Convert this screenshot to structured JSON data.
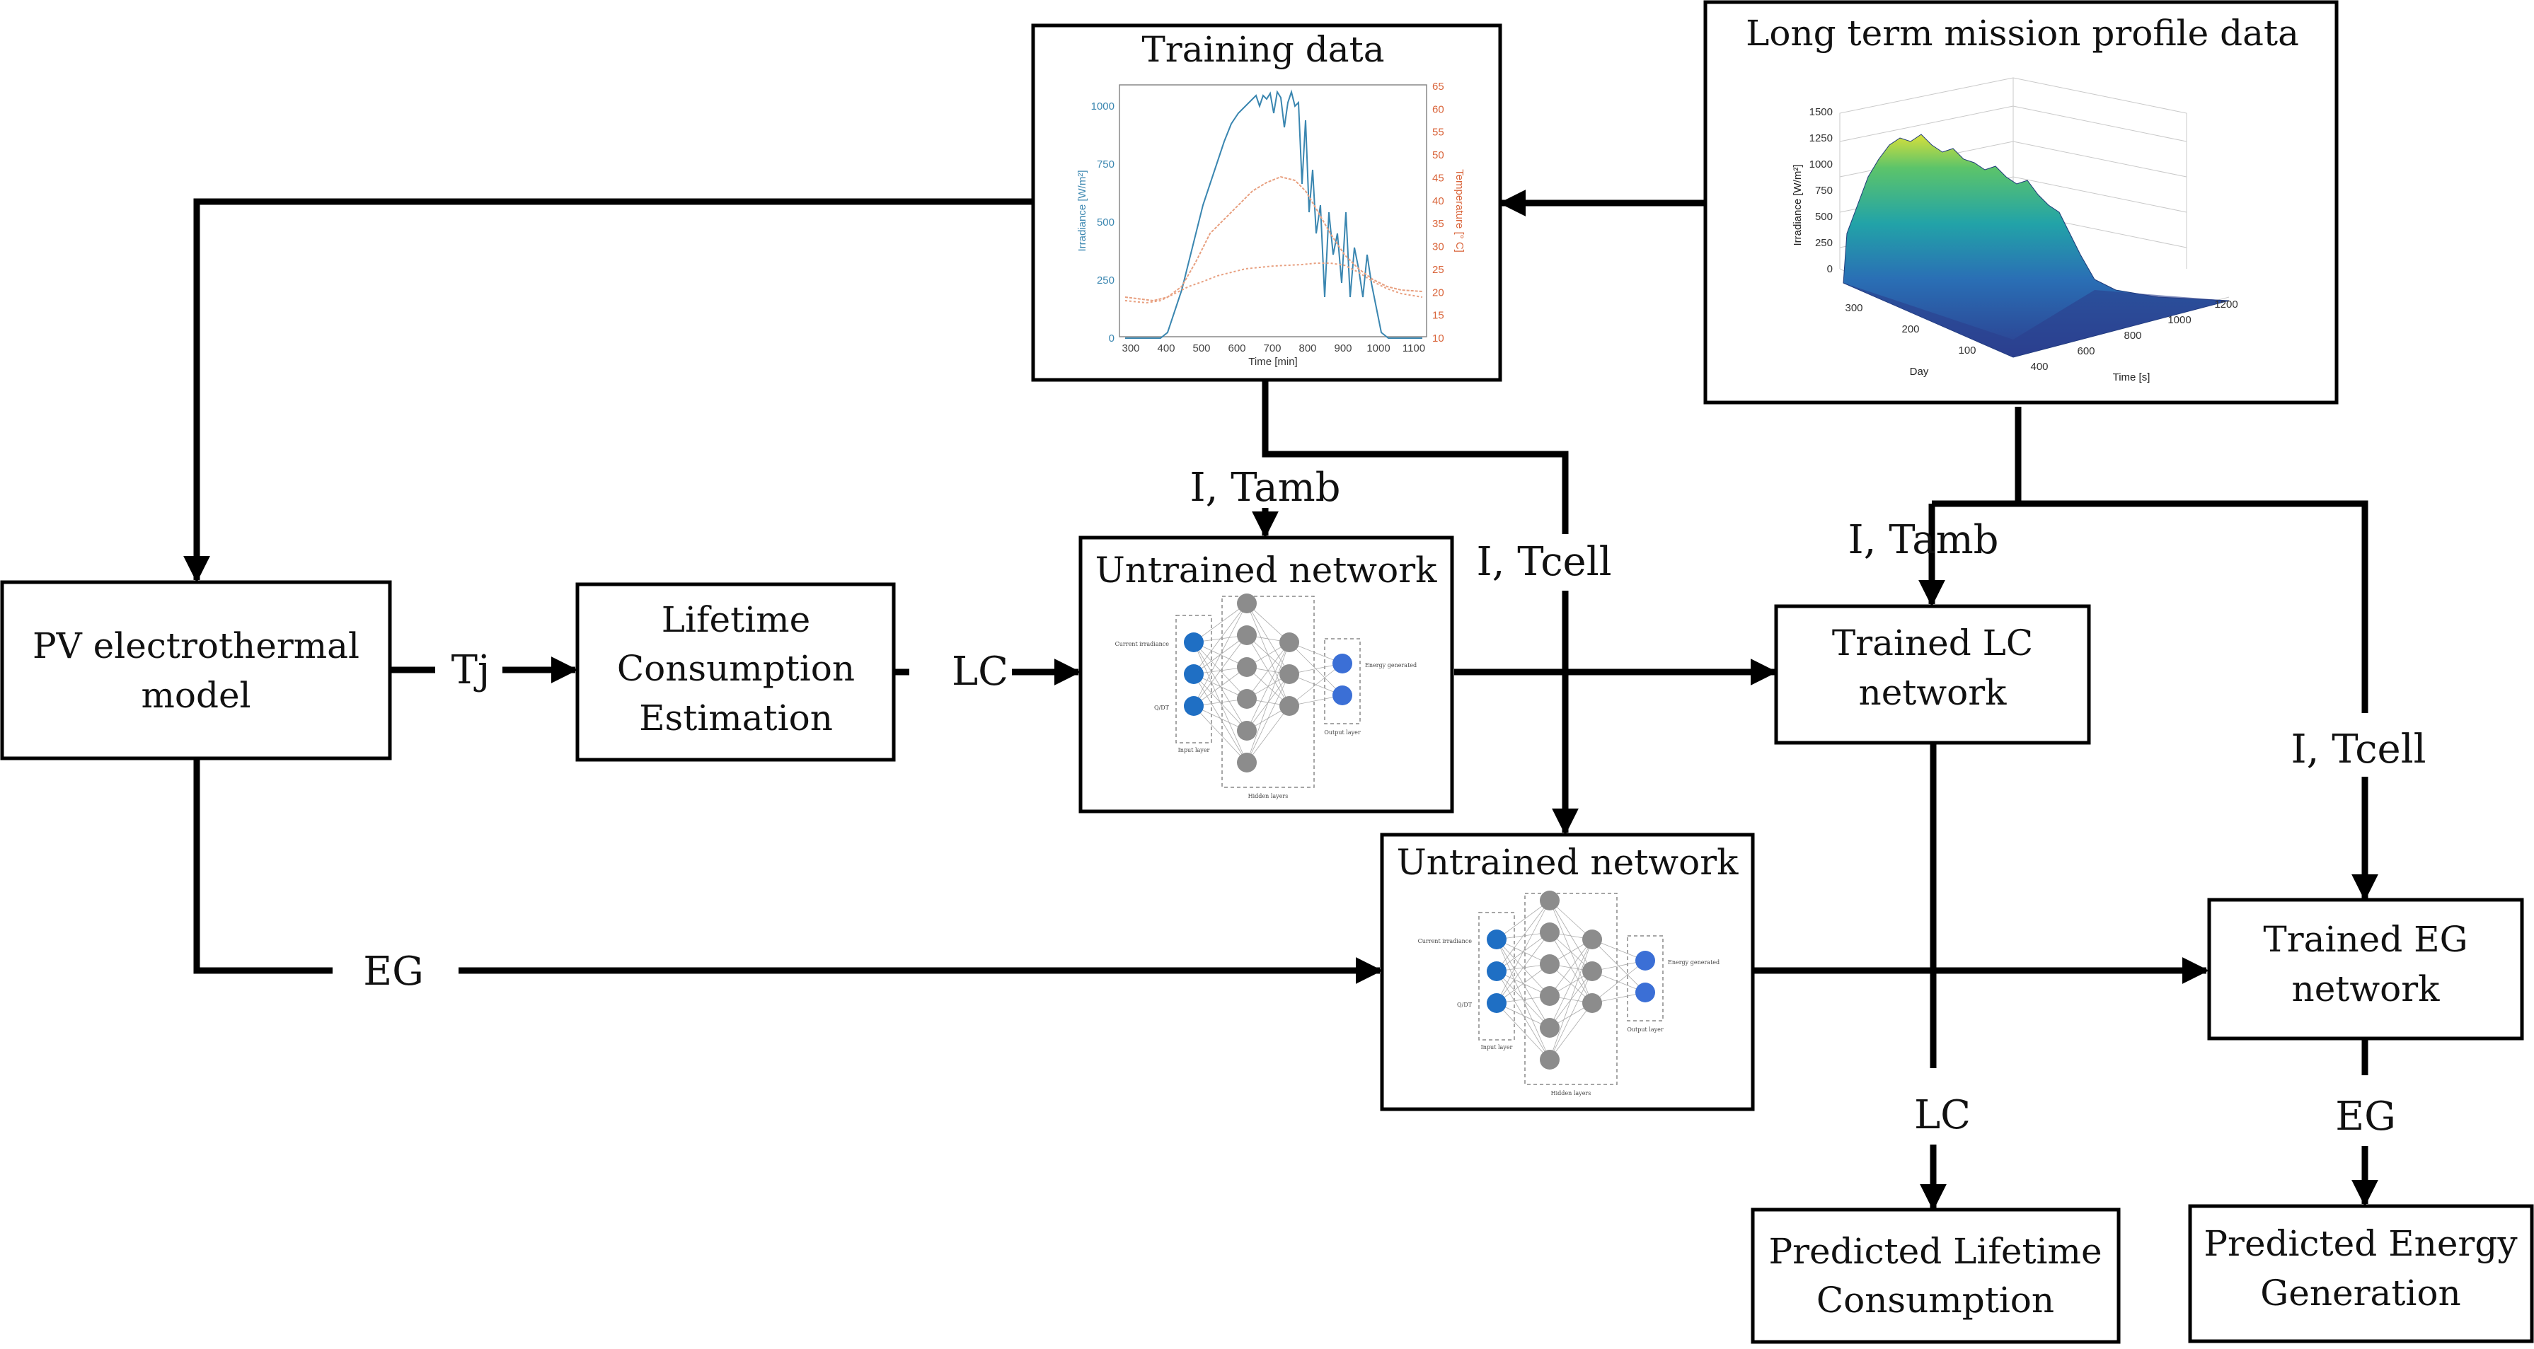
{
  "boxes": {
    "training_data": {
      "title": "Training data"
    },
    "long_term": {
      "title": "Long term mission profile data"
    },
    "pv_model": {
      "line1": "PV electrothermal",
      "line2": "model"
    },
    "lifetime": {
      "line1": "Lifetime",
      "line2": "Consumption",
      "line3": "Estimation"
    },
    "untrained_lc": {
      "title": "Untrained network"
    },
    "untrained_eg": {
      "title": "Untrained network"
    },
    "trained_lc": {
      "line1": "Trained LC",
      "line2": "network"
    },
    "trained_eg": {
      "line1": "Trained EG",
      "line2": "network"
    },
    "pred_lc": {
      "line1": "Predicted Lifetime",
      "line2": "Consumption"
    },
    "pred_eg": {
      "line1": "Predicted Energy",
      "line2": "Generation"
    }
  },
  "wire_labels": {
    "tj": "Tj",
    "lc_mid": "LC",
    "eg_left": "EG",
    "i_tamb_top": "I, Tamb",
    "i_tcell_mid": "I, Tcell",
    "i_tamb_right": "I, Tamb",
    "i_tcell_right": "I, Tcell",
    "lc_bottom": "LC",
    "eg_bottom": "EG"
  },
  "training_chart": {
    "xlabel": "Time [min]",
    "ylabel_left": "Irradiance [W/m²]",
    "ylabel_right": "Temperature [° C]",
    "x_ticks": [
      "300",
      "400",
      "500",
      "600",
      "700",
      "800",
      "900",
      "1000",
      "1100"
    ],
    "y_left_ticks": [
      "0",
      "250",
      "500",
      "750",
      "1000"
    ],
    "y_right_ticks": [
      "10",
      "15",
      "20",
      "25",
      "30",
      "35",
      "40",
      "45",
      "50",
      "55",
      "60",
      "65"
    ],
    "colors": {
      "irradiance": "#3a86b0",
      "temperature": "#d9643a"
    }
  },
  "surface_chart": {
    "zlabel": "Irradiance [W/m²]",
    "xlabel": "Day",
    "ylabel": "Time [s]",
    "z_ticks": [
      "0",
      "250",
      "500",
      "750",
      "1000",
      "1250",
      "1500"
    ],
    "day_ticks": [
      "300",
      "200",
      "100"
    ],
    "time_ticks": [
      "400",
      "600",
      "800",
      "1000",
      "1200"
    ]
  },
  "network_thumb": {
    "inputs": [
      "Current irradiance",
      "Q/DT"
    ],
    "output": "Energy generated",
    "input_layer": "Input layer",
    "hidden_layers": "Hidden layers",
    "output_layer": "Output layer"
  }
}
